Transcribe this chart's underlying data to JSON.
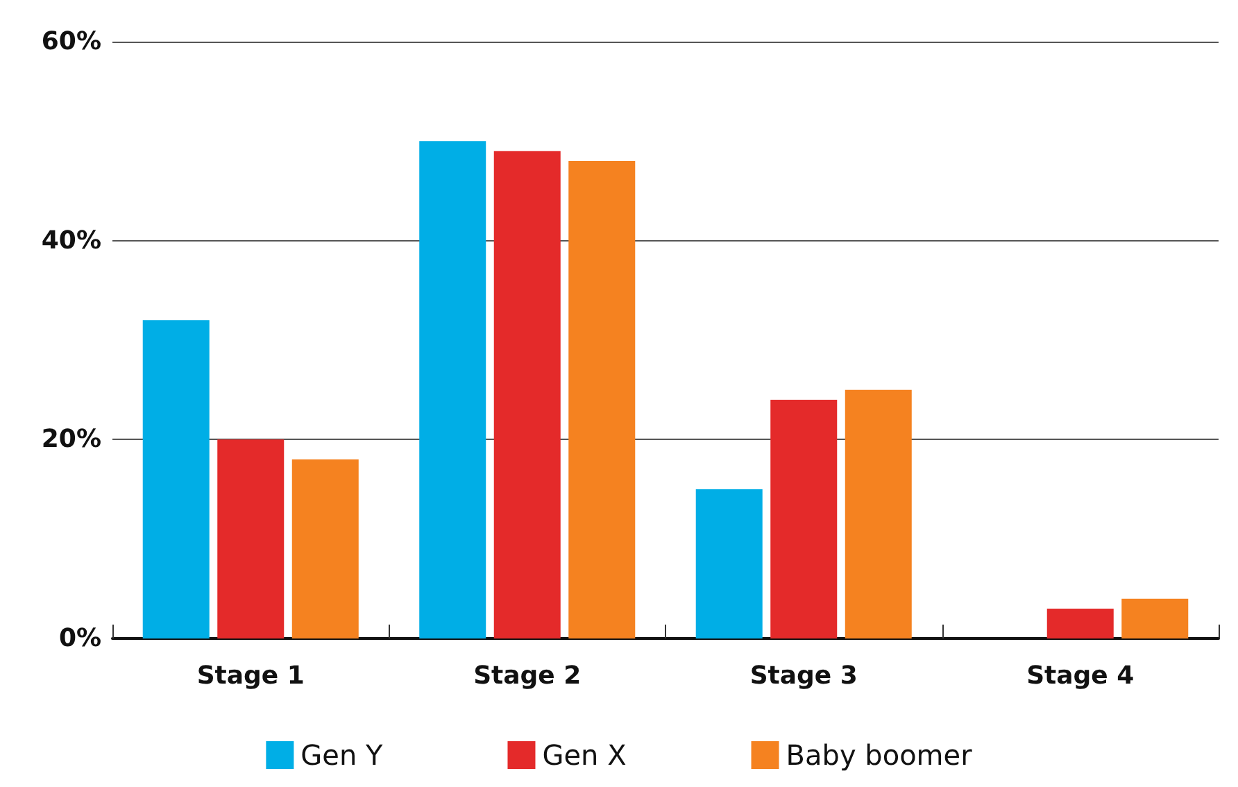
{
  "chart_data": {
    "type": "bar",
    "categories": [
      "Stage 1",
      "Stage 2",
      "Stage 3",
      "Stage 4"
    ],
    "series": [
      {
        "name": "Gen Y",
        "color": "#00aee6",
        "values": [
          32,
          50,
          15,
          0
        ]
      },
      {
        "name": "Gen X",
        "color": "#e42a2a",
        "values": [
          20,
          49,
          24,
          3
        ]
      },
      {
        "name": "Baby boomer",
        "color": "#f58220",
        "values": [
          18,
          48,
          25,
          4
        ]
      }
    ],
    "ylim": [
      0,
      60
    ],
    "yticks": [
      {
        "value": 0,
        "label": "0%"
      },
      {
        "value": 20,
        "label": "20%"
      },
      {
        "value": 40,
        "label": "40%"
      },
      {
        "value": 60,
        "label": "60%"
      }
    ],
    "grid": "y",
    "legend": "bottom"
  }
}
